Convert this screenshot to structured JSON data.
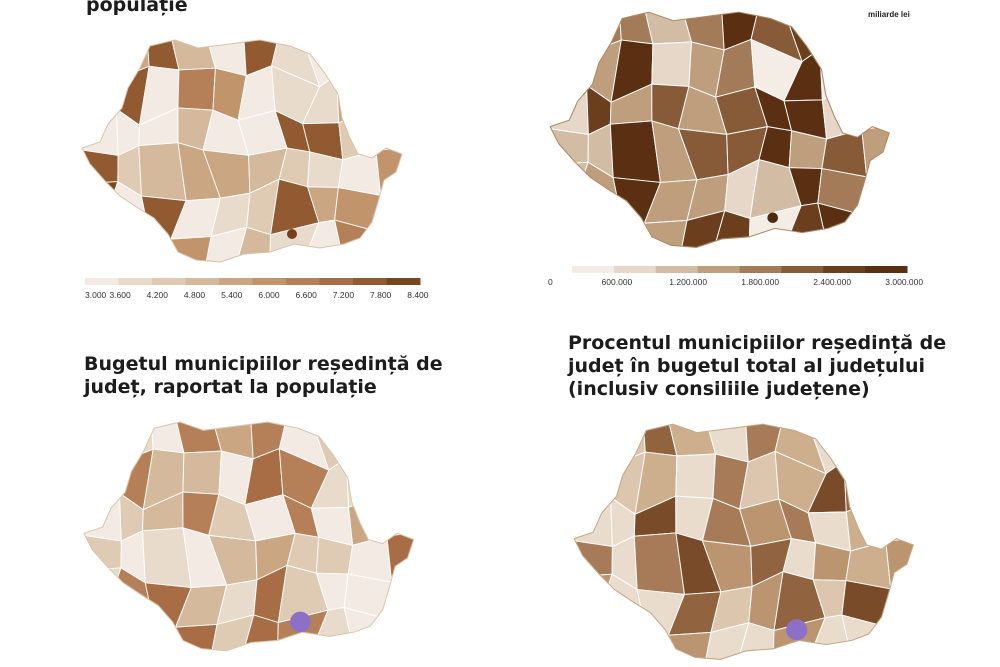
{
  "panels": [
    {
      "title": "populație",
      "unit": "",
      "legend_ticks": [
        "3.000",
        "3.600",
        "4.200",
        "4.800",
        "5.400",
        "6.000",
        "6.600",
        "7.200",
        "7.800",
        "8.400"
      ],
      "legend_colors": [
        "#f3ebe3",
        "#e9dbcb",
        "#dfcab4",
        "#d5b99c",
        "#cba683",
        "#c1946c",
        "#b58058",
        "#a86d44",
        "#925a30",
        "#7a4620"
      ],
      "outline_color": "#d9c2a8",
      "bucharest_color": "#7a3d1c"
    },
    {
      "title": "",
      "unit": "miliarde lei",
      "legend_ticks": [
        "0",
        "600.000",
        "1.200.000",
        "1.800.000",
        "2.400.000",
        "3.000.000"
      ],
      "legend_colors": [
        "#f4ede6",
        "#e6d7c8",
        "#d3bca4",
        "#bf9e7e",
        "#a47b58",
        "#875a38",
        "#6b3e1e",
        "#5a2f12"
      ],
      "outline_color": "#b08a64",
      "bucharest_color": "#4e2a10"
    },
    {
      "title": "Bugetul municipiilor reședință de\njudeț, raportat la populație",
      "unit": "",
      "legend_ticks": [],
      "legend_colors": [
        "#f3ebe3",
        "#e9dbcb",
        "#dfcab4",
        "#d5b99c",
        "#cba683",
        "#b58058",
        "#a86d44"
      ],
      "outline_color": "#dac5ae",
      "bucharest_color": "#8c70c8"
    },
    {
      "title": "Procentul municipiilor reședință de\njudeț în bugetul total al județului\n(inclusiv consiliile județene)",
      "unit": "",
      "legend_ticks": [],
      "legend_colors": [
        "#eadccd",
        "#dcc6ad",
        "#cdae8d",
        "#bb9470",
        "#a77b57",
        "#91633f",
        "#7a4b28"
      ],
      "outline_color": "#c6a988",
      "bucharest_color": "#8c70c8"
    }
  ]
}
